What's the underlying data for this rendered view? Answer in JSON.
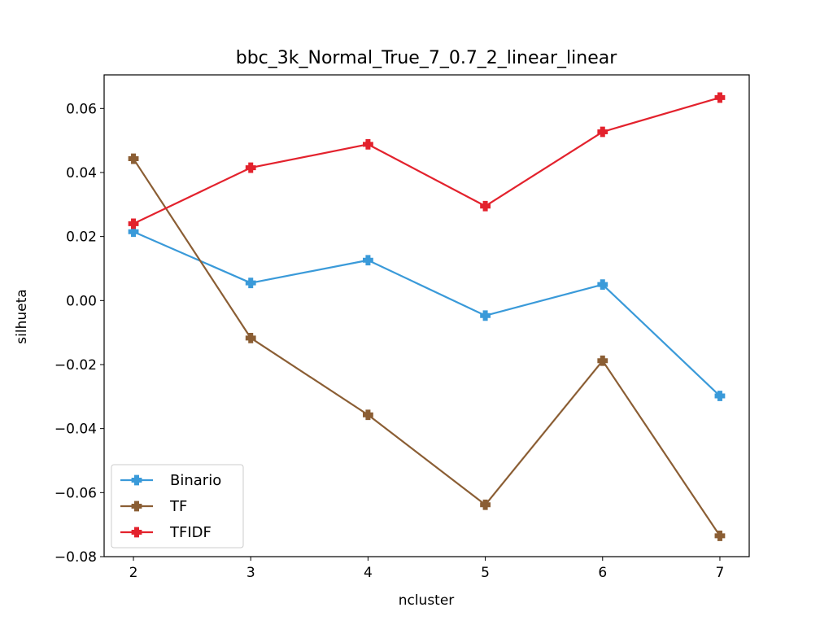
{
  "chart_data": {
    "type": "line",
    "title": "bbc_3k_Normal_True_7_0.7_2_linear_linear",
    "xlabel": "ncluster",
    "ylabel": "silhueta",
    "x": [
      2,
      3,
      4,
      5,
      6,
      7
    ],
    "xlim": [
      1.75,
      7.25
    ],
    "ylim": [
      -0.08,
      0.0705
    ],
    "xticks": [
      "2",
      "3",
      "4",
      "5",
      "6",
      "7"
    ],
    "yticks": [
      {
        "value": 0.06,
        "label": "0.06"
      },
      {
        "value": 0.04,
        "label": "0.04"
      },
      {
        "value": 0.02,
        "label": "0.02"
      },
      {
        "value": 0.0,
        "label": "0.00"
      },
      {
        "value": -0.02,
        "label": "−0.02"
      },
      {
        "value": -0.04,
        "label": "−0.04"
      },
      {
        "value": -0.06,
        "label": "−0.06"
      },
      {
        "value": -0.08,
        "label": "−0.08"
      }
    ],
    "grid": false,
    "legend_position": "bottom-left",
    "marker": "plus-filled",
    "series": [
      {
        "name": "Binario",
        "color": "#3a9ad9",
        "values": [
          0.0215,
          0.0055,
          0.0126,
          -0.0047,
          0.005,
          -0.0298
        ]
      },
      {
        "name": "TF",
        "color": "#8b5e34",
        "values": [
          0.0443,
          -0.0117,
          -0.0357,
          -0.0638,
          -0.0188,
          -0.0735
        ]
      },
      {
        "name": "TFIDF",
        "color": "#e3222d",
        "values": [
          0.024,
          0.0415,
          0.0488,
          0.0295,
          0.0527,
          0.0634
        ]
      }
    ]
  }
}
